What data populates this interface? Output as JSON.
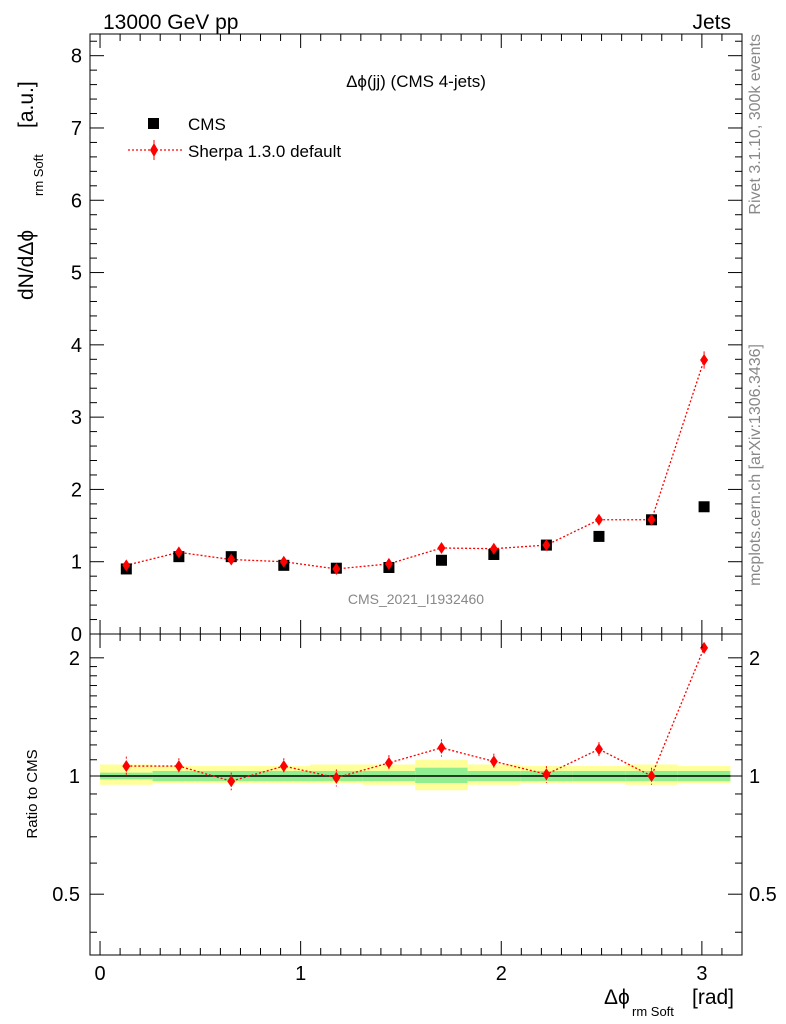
{
  "header": {
    "left": "13000 GeV pp",
    "right": "Jets"
  },
  "side_labels": {
    "rivet": "Rivet 3.1.10,  300k events",
    "mcplots": "mcplots.cern.ch [arXiv:1306.3436]"
  },
  "colors": {
    "mc": "#ff0000",
    "data": "#000000",
    "band_inner": "#90ee90",
    "band_outer": "#ffff99"
  },
  "chart_data": [
    {
      "type": "scatter",
      "title": "Δϕ(jj) (CMS 4-jets)",
      "watermark": "CMS_2021_I1932460",
      "ylabel_main": "dN/dΔϕ",
      "ylabel_sub": "rm Soft",
      "ylabel_unit": "[a.u.]",
      "xlim": [
        -0.05,
        3.2
      ],
      "ylim": [
        0,
        8.3
      ],
      "yticks": [
        1,
        2,
        3,
        4,
        5,
        6,
        7,
        8
      ],
      "ytick_labels": [
        "1",
        "2",
        "3",
        "4",
        "5",
        "6",
        "7",
        "8"
      ],
      "ytick_zero_label": "0",
      "legend": {
        "position": "top-left",
        "entries": [
          "CMS",
          "Sherpa 1.3.0 default"
        ]
      },
      "x": [
        0.131,
        0.393,
        0.654,
        0.916,
        1.178,
        1.44,
        1.702,
        1.963,
        2.225,
        2.487,
        2.749,
        3.011
      ],
      "series": [
        {
          "name": "CMS",
          "marker": "square",
          "values": [
            0.9,
            1.07,
            1.07,
            0.95,
            0.91,
            0.92,
            1.02,
            1.1,
            1.23,
            1.35,
            1.58,
            1.76
          ]
        },
        {
          "name": "Sherpa 1.3.0 default",
          "marker": "diamond",
          "values": [
            0.95,
            1.13,
            1.03,
            1.0,
            0.9,
            0.97,
            1.19,
            1.18,
            1.23,
            1.58,
            1.58,
            3.79
          ],
          "errors": [
            0.05,
            0.06,
            0.05,
            0.05,
            0.05,
            0.05,
            0.06,
            0.06,
            0.06,
            0.07,
            0.07,
            0.12
          ]
        }
      ]
    },
    {
      "type": "scatter",
      "ylabel": "Ratio to CMS",
      "xlabel_main": "Δϕ",
      "xlabel_sub": "rm Soft",
      "xlabel_unit": "[rad]",
      "xlim": [
        -0.05,
        3.2
      ],
      "ylim": [
        0.35,
        2.3
      ],
      "yticks": [
        0.5,
        1,
        2
      ],
      "ytick_labels": [
        "0.5",
        "1",
        "2"
      ],
      "xticks": [
        0,
        1,
        2,
        3
      ],
      "xtick_labels": [
        "0",
        "1",
        "2",
        "3"
      ],
      "x": [
        0.131,
        0.393,
        0.654,
        0.916,
        1.178,
        1.44,
        1.702,
        1.963,
        2.225,
        2.487,
        2.749,
        3.011
      ],
      "band_inner": [
        [
          0.98,
          1.02
        ],
        [
          0.97,
          1.03
        ],
        [
          0.97,
          1.03
        ],
        [
          0.97,
          1.03
        ],
        [
          0.97,
          1.03
        ],
        [
          0.97,
          1.03
        ],
        [
          0.96,
          1.05
        ],
        [
          0.97,
          1.03
        ],
        [
          0.97,
          1.03
        ],
        [
          0.97,
          1.03
        ],
        [
          0.97,
          1.03
        ],
        [
          0.97,
          1.03
        ]
      ],
      "band_outer": [
        [
          0.95,
          1.07
        ],
        [
          0.96,
          1.06
        ],
        [
          0.96,
          1.06
        ],
        [
          0.96,
          1.06
        ],
        [
          0.96,
          1.07
        ],
        [
          0.95,
          1.07
        ],
        [
          0.92,
          1.1
        ],
        [
          0.95,
          1.07
        ],
        [
          0.96,
          1.06
        ],
        [
          0.96,
          1.06
        ],
        [
          0.95,
          1.07
        ],
        [
          0.96,
          1.06
        ]
      ],
      "series": [
        {
          "name": "Sherpa 1.3.0 default",
          "values": [
            1.06,
            1.06,
            0.97,
            1.06,
            0.99,
            1.08,
            1.18,
            1.09,
            1.01,
            1.17,
            1.0,
            2.12
          ],
          "errors": [
            0.06,
            0.05,
            0.05,
            0.05,
            0.05,
            0.05,
            0.06,
            0.05,
            0.05,
            0.05,
            0.05,
            0.06
          ]
        }
      ]
    }
  ]
}
